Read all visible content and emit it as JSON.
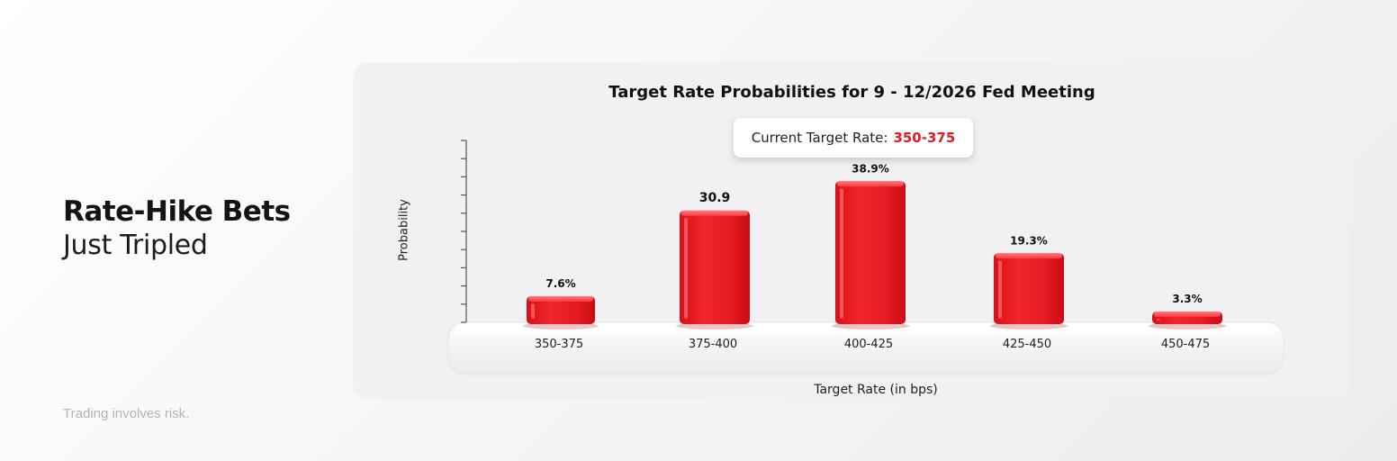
{
  "headline": {
    "line1": "Rate-Hike Bets",
    "line2": "Just Tripled"
  },
  "disclaimer": "Trading involves risk.",
  "current_rate": {
    "label": "Current Target Rate:",
    "value": "350-375"
  },
  "colors": {
    "accent": "#e21d24",
    "bar": "#e8161d"
  },
  "chart_data": {
    "type": "bar",
    "title": "Target Rate Probabilities for 9 - 12/2026 Fed Meeting",
    "xlabel": "Target Rate (in bps)",
    "ylabel": "Probability",
    "categories": [
      "350-375",
      "375-400",
      "400-425",
      "425-450",
      "450-475"
    ],
    "values": [
      7.6,
      30.9,
      38.9,
      19.3,
      3.3
    ],
    "data_labels": [
      "7.6%",
      "30.9",
      "38.9%",
      "19.3%",
      "3.3%"
    ],
    "ylim": [
      0,
      50
    ],
    "grid": false
  }
}
